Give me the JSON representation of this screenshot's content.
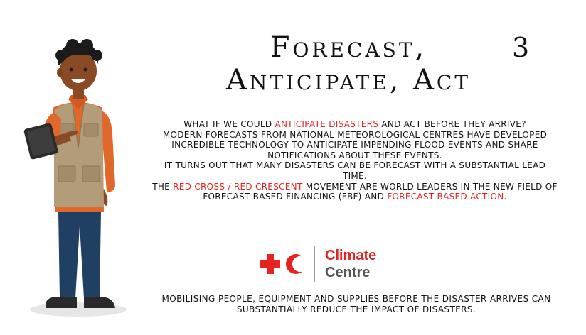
{
  "slide": {
    "title_line1": "Forecast,",
    "title_line2": "Anticipate, Act",
    "number": "3"
  },
  "body": {
    "p1_a": "What if we could ",
    "p1_hl": "anticipate disasters",
    "p1_b": " and act before they arrive?",
    "p2": "Modern forecasts from national meteorological centres have developed incredible technology to anticipate impending flood events and share notifications about these events.",
    "p3": "It turns out that many disasters can be forecast with a substantial lead time.",
    "p4_a": "The ",
    "p4_hl": "Red Cross / Red Crescent",
    "p4_b": " movement are world leaders in the new field of Forecast based Financing (FbF) and ",
    "p4_hl2": "Forecast based Action",
    "p4_c": "."
  },
  "logo": {
    "line1": "Climate",
    "line2": "Centre",
    "icon": "red-cross-red-crescent-emblem",
    "color": "#e52421"
  },
  "footer": {
    "text": "Mobilising people, equipment and supplies before the disaster arrives can substantially reduce the impact of disasters."
  },
  "illustration": {
    "icon": "person-holding-tablet-illustration"
  }
}
